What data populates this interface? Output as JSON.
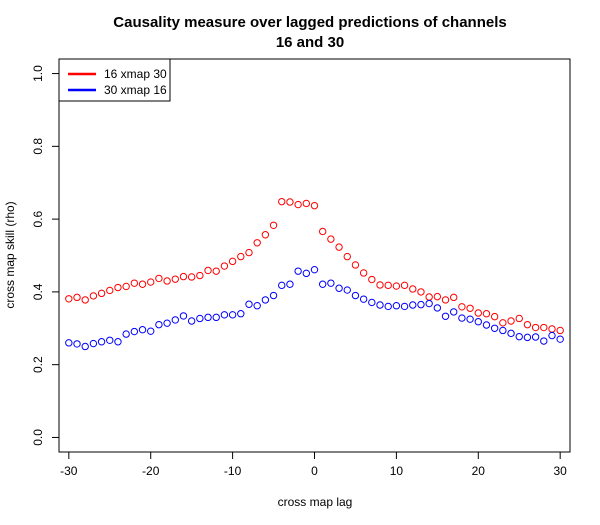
{
  "chart_data": {
    "type": "scatter",
    "title_lines": [
      "Causality measure over lagged predictions of channels",
      "16 and 30"
    ],
    "xlabel": "cross map lag",
    "ylabel": "cross map skill (rho)",
    "xlim": [
      -31.2,
      31.2
    ],
    "ylim": [
      -0.04,
      1.04
    ],
    "xticks": [
      -30,
      -20,
      -10,
      0,
      10,
      20,
      30
    ],
    "xtick_labels": [
      "-30",
      "-20",
      "-10",
      "0",
      "10",
      "20",
      "30"
    ],
    "yticks": [
      0.0,
      0.2,
      0.4,
      0.6,
      0.8,
      1.0
    ],
    "ytick_labels": [
      "0.0",
      "0.2",
      "0.4",
      "0.6",
      "0.8",
      "1.0"
    ],
    "grid": false,
    "legend_position": "top-left",
    "x": [
      -30,
      -29,
      -28,
      -27,
      -26,
      -25,
      -24,
      -23,
      -22,
      -21,
      -20,
      -19,
      -18,
      -17,
      -16,
      -15,
      -14,
      -13,
      -12,
      -11,
      -10,
      -9,
      -8,
      -7,
      -6,
      -5,
      -4,
      -3,
      -2,
      -1,
      0,
      1,
      2,
      3,
      4,
      5,
      6,
      7,
      8,
      9,
      10,
      11,
      12,
      13,
      14,
      15,
      16,
      17,
      18,
      19,
      20,
      21,
      22,
      23,
      24,
      25,
      26,
      27,
      28,
      29,
      30
    ],
    "series": [
      {
        "name": "16 xmap 30",
        "color": "#ff0000",
        "values": [
          0.381,
          0.385,
          0.378,
          0.389,
          0.396,
          0.404,
          0.412,
          0.415,
          0.424,
          0.421,
          0.427,
          0.437,
          0.43,
          0.435,
          0.442,
          0.441,
          0.445,
          0.459,
          0.457,
          0.471,
          0.484,
          0.497,
          0.508,
          0.535,
          0.557,
          0.583,
          0.648,
          0.647,
          0.64,
          0.643,
          0.637,
          0.566,
          0.545,
          0.523,
          0.497,
          0.474,
          0.452,
          0.434,
          0.419,
          0.418,
          0.416,
          0.418,
          0.408,
          0.4,
          0.386,
          0.387,
          0.378,
          0.385,
          0.359,
          0.355,
          0.342,
          0.34,
          0.332,
          0.315,
          0.32,
          0.327,
          0.31,
          0.302,
          0.302,
          0.298,
          0.294
        ]
      },
      {
        "name": "30 xmap 16",
        "color": "#0000ff",
        "values": [
          0.26,
          0.257,
          0.25,
          0.258,
          0.263,
          0.267,
          0.263,
          0.284,
          0.291,
          0.296,
          0.292,
          0.31,
          0.314,
          0.323,
          0.334,
          0.32,
          0.327,
          0.33,
          0.33,
          0.337,
          0.337,
          0.34,
          0.366,
          0.362,
          0.378,
          0.39,
          0.418,
          0.421,
          0.457,
          0.451,
          0.461,
          0.421,
          0.424,
          0.41,
          0.405,
          0.39,
          0.38,
          0.371,
          0.364,
          0.36,
          0.362,
          0.36,
          0.364,
          0.365,
          0.368,
          0.356,
          0.333,
          0.345,
          0.328,
          0.325,
          0.318,
          0.309,
          0.3,
          0.294,
          0.286,
          0.277,
          0.275,
          0.276,
          0.265,
          0.28,
          0.27
        ]
      }
    ]
  }
}
